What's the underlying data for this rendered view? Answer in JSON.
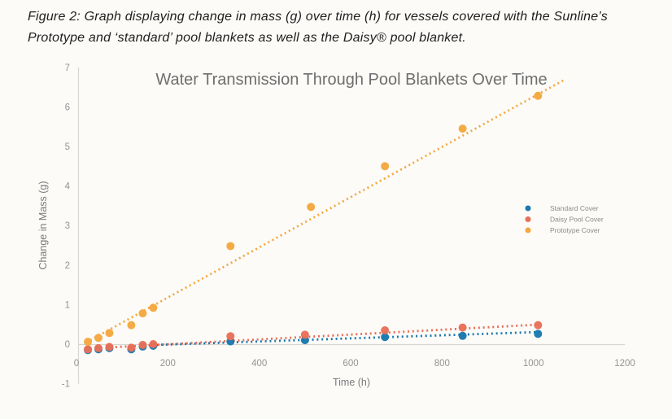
{
  "caption": {
    "line1": "Figure 2:  Graph displaying change in mass (g) over time (h) for vessels covered with the Sunline’s",
    "line2": "Prototype and ‘standard’ pool blankets as well as the Daisy® pool blanket."
  },
  "chart_data": {
    "type": "scatter",
    "title": "Water Transmission Through Pool Blankets Over Time",
    "xlabel": "Time (h)",
    "ylabel": "Change in Mass (g)",
    "xlim": [
      0,
      1200
    ],
    "ylim": [
      -1,
      7
    ],
    "xticks": [
      0,
      200,
      400,
      600,
      800,
      1000,
      1200
    ],
    "yticks": [
      -1,
      0,
      1,
      2,
      3,
      4,
      5,
      6,
      7
    ],
    "grid": false,
    "legend_position": "middle-right",
    "title_color": "#6e6e6e",
    "tick_color": "#949494",
    "axis_line_color": "#d8d6d0",
    "legend_text_color": "#8a8a8a",
    "series": [
      {
        "name": "Standard Cover",
        "color": "#1B79AE",
        "points": [
          [
            25,
            -0.15
          ],
          [
            48,
            -0.13
          ],
          [
            72,
            -0.1
          ],
          [
            120,
            -0.13
          ],
          [
            145,
            -0.06
          ],
          [
            168,
            -0.04
          ],
          [
            337,
            0.07
          ],
          [
            500,
            0.1
          ],
          [
            675,
            0.18
          ],
          [
            845,
            0.21
          ],
          [
            1010,
            0.26
          ]
        ],
        "trendline": [
          [
            175,
            -0.02
          ],
          [
            1020,
            0.31
          ]
        ]
      },
      {
        "name": "Daisy Pool Cover",
        "color": "#E96F57",
        "points": [
          [
            25,
            -0.13
          ],
          [
            48,
            -0.1
          ],
          [
            72,
            -0.07
          ],
          [
            120,
            -0.09
          ],
          [
            145,
            -0.02
          ],
          [
            168,
            0.0
          ],
          [
            337,
            0.2
          ],
          [
            500,
            0.24
          ],
          [
            675,
            0.35
          ],
          [
            845,
            0.42
          ],
          [
            1010,
            0.48
          ]
        ],
        "trendline": [
          [
            75,
            -0.08
          ],
          [
            1020,
            0.5
          ]
        ]
      },
      {
        "name": "Prototype Cover",
        "color": "#F4A83F",
        "points": [
          [
            25,
            0.06
          ],
          [
            48,
            0.16
          ],
          [
            72,
            0.28
          ],
          [
            120,
            0.48
          ],
          [
            145,
            0.78
          ],
          [
            168,
            0.92
          ],
          [
            337,
            2.48
          ],
          [
            513,
            3.47
          ],
          [
            675,
            4.5
          ],
          [
            845,
            5.45
          ],
          [
            1010,
            6.28
          ]
        ],
        "trendline": [
          [
            30,
            0.1
          ],
          [
            1070,
            6.7
          ]
        ]
      }
    ]
  }
}
